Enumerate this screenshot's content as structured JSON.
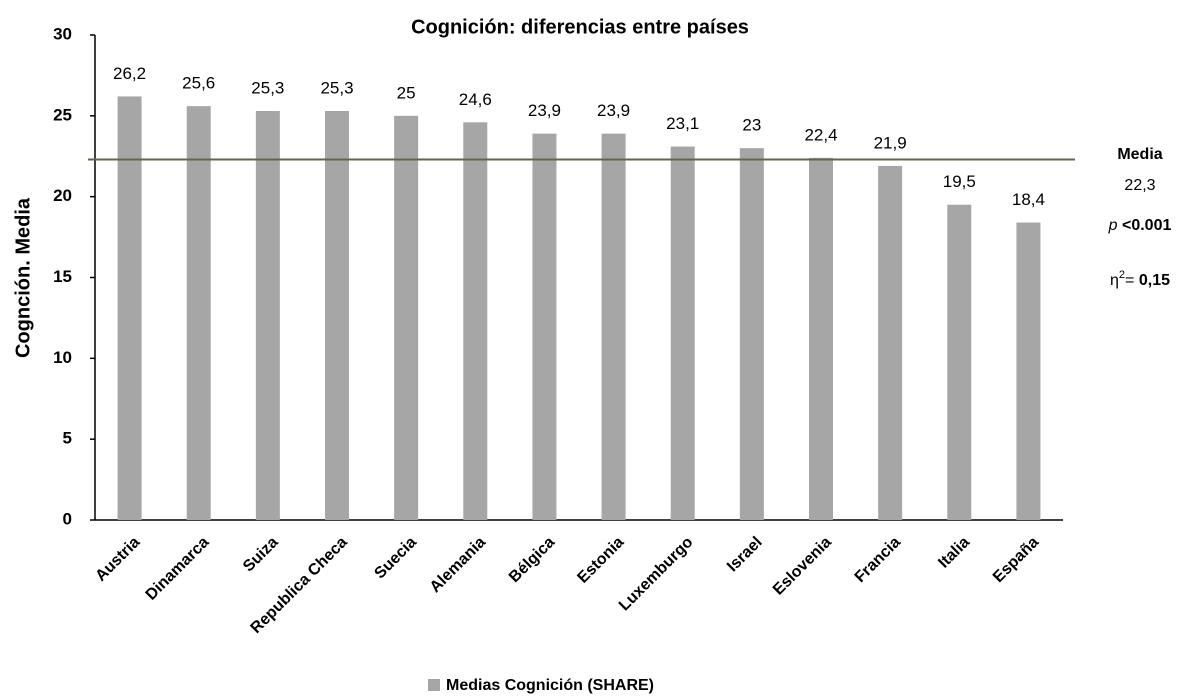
{
  "chart_data": {
    "type": "bar",
    "title": "Cognición: diferencias entre países",
    "y_label": "Cognción. Media",
    "categories": [
      "Austria",
      "Dinamarca",
      "Suiza",
      "Republica Checa",
      "Suecia",
      "Alemania",
      "Bélgica",
      "Estonia",
      "Luxemburgo",
      "Israel",
      "Eslovenia",
      "Francia",
      "Italia",
      "España"
    ],
    "series": [
      {
        "name": "Medias Cognición (SHARE)",
        "color": "#a6a6a6",
        "values": [
          26.2,
          25.6,
          25.3,
          25.3,
          25,
          24.6,
          23.9,
          23.9,
          23.1,
          23,
          22.4,
          21.9,
          19.5,
          18.4
        ],
        "value_labels": [
          "26,2",
          "25,6",
          "25,3",
          "25,3",
          "25",
          "24,6",
          "23,9",
          "23,9",
          "23,1",
          "23",
          "22,4",
          "21,9",
          "19,5",
          "18,4"
        ]
      }
    ],
    "ylim": [
      0,
      30
    ],
    "yticks": [
      0,
      5,
      10,
      15,
      20,
      25,
      30
    ],
    "mean_line": {
      "label": "Media",
      "value": 22.3,
      "value_label": "22,3",
      "color": "#5b6b48"
    },
    "p_note": {
      "symbol": "p",
      "text": "<0.001"
    },
    "eta_note": {
      "symbol": "η",
      "sup": "2",
      "eq": "= ",
      "value": "0,15"
    },
    "legend": "bottom"
  }
}
